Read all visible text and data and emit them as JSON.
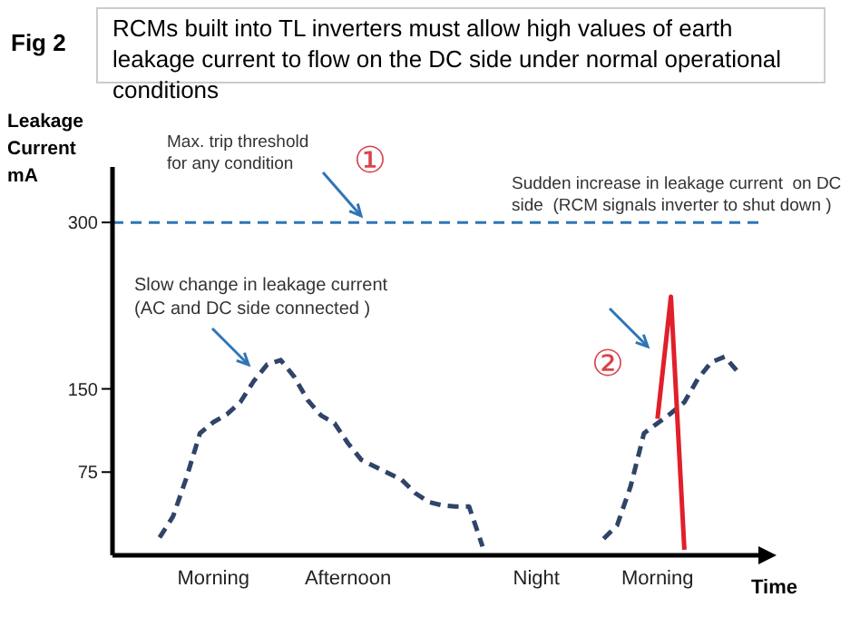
{
  "chart_data": {
    "type": "line",
    "title": "RCMs built into TL inverters must allow high values of earth leakage current to flow on the DC side under normal operational conditions",
    "subtitle": "Fig 2",
    "xlabel": "Time",
    "ylabel": "Leakage Current mA",
    "categories": [
      null,
      null,
      null,
      null,
      null,
      null,
      null,
      "Morning",
      null,
      null,
      null,
      null,
      null,
      null,
      null,
      null,
      null,
      "Afternoon",
      null,
      null,
      null,
      null,
      null,
      null,
      null,
      null,
      null,
      null,
      null,
      null,
      null,
      "Night",
      null,
      null,
      null,
      null,
      null,
      null,
      null,
      null,
      "Morning",
      null,
      null,
      null,
      null,
      null,
      null,
      null
    ],
    "ylim": [
      0,
      350
    ],
    "yticks": [
      75,
      150,
      300
    ],
    "line_style": "dashed",
    "series": [
      {
        "color": "#2f4468",
        "values": [
          null,
          null,
          null,
          16,
          35,
          70,
          110,
          120,
          127,
          138,
          157,
          172,
          176,
          161,
          140,
          126,
          119,
          101,
          86,
          80,
          74,
          68,
          56,
          48,
          45,
          44,
          44,
          8,
          null,
          null,
          null,
          null,
          null,
          null,
          null,
          null,
          15,
          27,
          62,
          110,
          119,
          128,
          138,
          159,
          174,
          179,
          165,
          null
        ]
      },
      {
        "color": "#e0202a",
        "line_style": "solid",
        "values": [
          null,
          null,
          null,
          null,
          null,
          null,
          null,
          null,
          null,
          null,
          null,
          null,
          null,
          null,
          null,
          null,
          null,
          null,
          null,
          null,
          null,
          null,
          null,
          null,
          null,
          null,
          null,
          null,
          null,
          null,
          null,
          null,
          null,
          null,
          null,
          null,
          null,
          null,
          null,
          null,
          123,
          233,
          5,
          null,
          null,
          null,
          null,
          null
        ]
      }
    ],
    "ref_lines": [
      {
        "axis": "y",
        "value": 300,
        "color": "#2e75b6",
        "line_style": "dashed"
      }
    ],
    "annotations": [
      "Max. trip threshold\nfor any condition",
      "①",
      "Slow change in leakage current\n(AC and DC side connected )",
      "Sudden increase in leakage current  on DC\nside  (RCM signals inverter to shut down )",
      "②"
    ]
  }
}
